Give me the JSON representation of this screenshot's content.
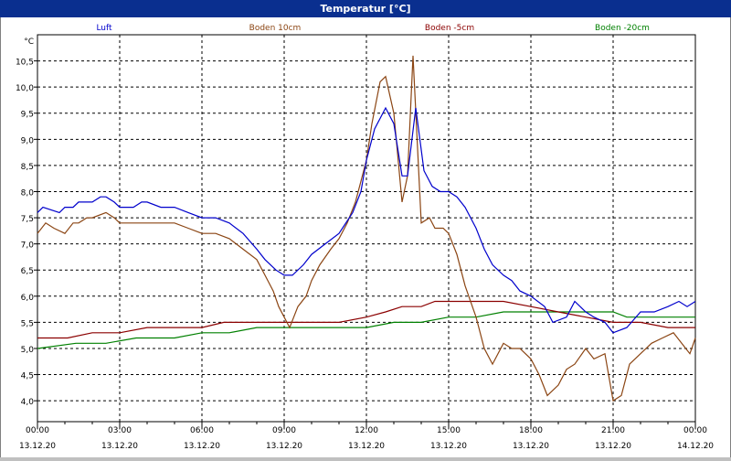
{
  "title": "Temperatur [°C]",
  "chart_data": {
    "type": "line",
    "ylabel": "°C",
    "ylim": [
      3.6,
      11.0
    ],
    "y_ticks": [
      "4,0",
      "4,5",
      "5,0",
      "5,5",
      "6,0",
      "6,5",
      "7,0",
      "7,5",
      "8,0",
      "8,5",
      "9,0",
      "9,5",
      "10,0",
      "10,5"
    ],
    "x_ticks": [
      {
        "time": "00:00",
        "date": "13.12.20"
      },
      {
        "time": "03:00",
        "date": "13.12.20"
      },
      {
        "time": "06:00",
        "date": "13.12.20"
      },
      {
        "time": "09:00",
        "date": "13.12.20"
      },
      {
        "time": "12:00",
        "date": "13.12.20"
      },
      {
        "time": "15:00",
        "date": "13.12.20"
      },
      {
        "time": "18:00",
        "date": "13.12.20"
      },
      {
        "time": "21:00",
        "date": "13.12.20"
      },
      {
        "time": "00:00",
        "date": "14.12.20"
      }
    ],
    "x_range_hours": [
      0,
      24
    ],
    "grid": true,
    "series": [
      {
        "name": "Luft",
        "color": "#0000cc",
        "x": [
          0,
          0.2,
          0.8,
          1,
          1.3,
          1.5,
          2,
          2.3,
          2.5,
          2.8,
          3,
          3.5,
          3.8,
          4,
          4.5,
          5,
          5.5,
          6,
          6.5,
          7,
          7.5,
          8,
          8.3,
          8.7,
          9,
          9.3,
          9.7,
          10,
          10.5,
          11,
          11.5,
          11.8,
          12,
          12.3,
          12.7,
          13,
          13.3,
          13.5,
          13.8,
          14.1,
          14.4,
          14.7,
          15,
          15.3,
          15.6,
          16,
          16.3,
          16.6,
          17,
          17.3,
          17.6,
          18,
          18.5,
          18.8,
          19.3,
          19.6,
          20,
          20.3,
          20.7,
          21,
          21.5,
          22,
          22.5,
          23,
          23.4,
          23.7,
          24
        ],
        "y": [
          7.6,
          7.7,
          7.6,
          7.7,
          7.7,
          7.8,
          7.8,
          7.9,
          7.9,
          7.8,
          7.7,
          7.7,
          7.8,
          7.8,
          7.7,
          7.7,
          7.6,
          7.5,
          7.5,
          7.4,
          7.2,
          6.9,
          6.7,
          6.5,
          6.4,
          6.4,
          6.6,
          6.8,
          7.0,
          7.2,
          7.6,
          8.0,
          8.6,
          9.2,
          9.6,
          9.3,
          8.3,
          8.3,
          9.6,
          8.4,
          8.1,
          8.0,
          8.0,
          7.9,
          7.7,
          7.3,
          6.9,
          6.6,
          6.4,
          6.3,
          6.1,
          6.0,
          5.8,
          5.5,
          5.6,
          5.9,
          5.7,
          5.6,
          5.5,
          5.3,
          5.4,
          5.7,
          5.7,
          5.8,
          5.9,
          5.8,
          5.9
        ]
      },
      {
        "name": "Boden 10cm",
        "color": "#8b4513",
        "x": [
          0,
          0.3,
          0.6,
          1,
          1.3,
          1.5,
          1.8,
          2,
          2.5,
          2.8,
          3,
          4,
          5,
          5.5,
          6,
          6.5,
          7,
          7.5,
          8,
          8.3,
          8.6,
          8.8,
          9,
          9.2,
          9.5,
          9.8,
          10,
          10.3,
          10.7,
          11,
          11.3,
          11.6,
          11.8,
          12,
          12.2,
          12.5,
          12.7,
          13,
          13.3,
          13.5,
          13.7,
          14,
          14.3,
          14.5,
          14.8,
          15,
          15.3,
          15.6,
          16,
          16.3,
          16.6,
          17,
          17.3,
          17.6,
          18,
          18.3,
          18.6,
          19,
          19.3,
          19.6,
          20,
          20.3,
          20.7,
          21,
          21.3,
          21.6,
          22,
          22.4,
          22.8,
          23.2,
          23.5,
          23.8,
          24
        ],
        "y": [
          7.2,
          7.4,
          7.3,
          7.2,
          7.4,
          7.4,
          7.5,
          7.5,
          7.6,
          7.5,
          7.4,
          7.4,
          7.4,
          7.3,
          7.2,
          7.2,
          7.1,
          6.9,
          6.7,
          6.4,
          6.1,
          5.8,
          5.6,
          5.4,
          5.8,
          6.0,
          6.3,
          6.6,
          6.9,
          7.1,
          7.4,
          7.8,
          8.2,
          8.6,
          9.3,
          10.1,
          10.2,
          9.5,
          7.8,
          8.3,
          10.6,
          7.4,
          7.5,
          7.3,
          7.3,
          7.2,
          6.8,
          6.2,
          5.6,
          5.0,
          4.7,
          5.1,
          5.0,
          5.0,
          4.8,
          4.5,
          4.1,
          4.3,
          4.6,
          4.7,
          5.0,
          4.8,
          4.9,
          4.0,
          4.1,
          4.7,
          4.9,
          5.1,
          5.2,
          5.3,
          5.1,
          4.9,
          5.2
        ]
      },
      {
        "name": "Boden -5cm",
        "color": "#8b0000",
        "x": [
          0,
          1.1,
          2,
          3,
          4,
          5,
          6,
          6.8,
          8,
          9,
          10,
          11,
          12,
          12.7,
          13.3,
          14,
          14.5,
          15.2,
          16,
          17,
          18,
          19,
          20,
          21,
          22,
          23,
          24
        ],
        "y": [
          5.2,
          5.2,
          5.3,
          5.3,
          5.4,
          5.4,
          5.4,
          5.5,
          5.5,
          5.5,
          5.5,
          5.5,
          5.6,
          5.7,
          5.8,
          5.8,
          5.9,
          5.9,
          5.9,
          5.9,
          5.8,
          5.7,
          5.6,
          5.5,
          5.5,
          5.4,
          5.4
        ]
      },
      {
        "name": "Boden -20cm",
        "color": "#008000",
        "x": [
          0,
          1.4,
          2.5,
          3.6,
          5,
          6,
          7,
          8,
          9,
          10,
          11,
          12,
          13,
          14,
          15,
          16,
          17,
          18,
          19,
          20,
          21,
          21.5,
          22,
          23,
          24
        ],
        "y": [
          5.0,
          5.1,
          5.1,
          5.2,
          5.2,
          5.3,
          5.3,
          5.4,
          5.4,
          5.4,
          5.4,
          5.4,
          5.5,
          5.5,
          5.6,
          5.6,
          5.7,
          5.7,
          5.7,
          5.7,
          5.7,
          5.6,
          5.6,
          5.6,
          5.6
        ]
      }
    ]
  }
}
